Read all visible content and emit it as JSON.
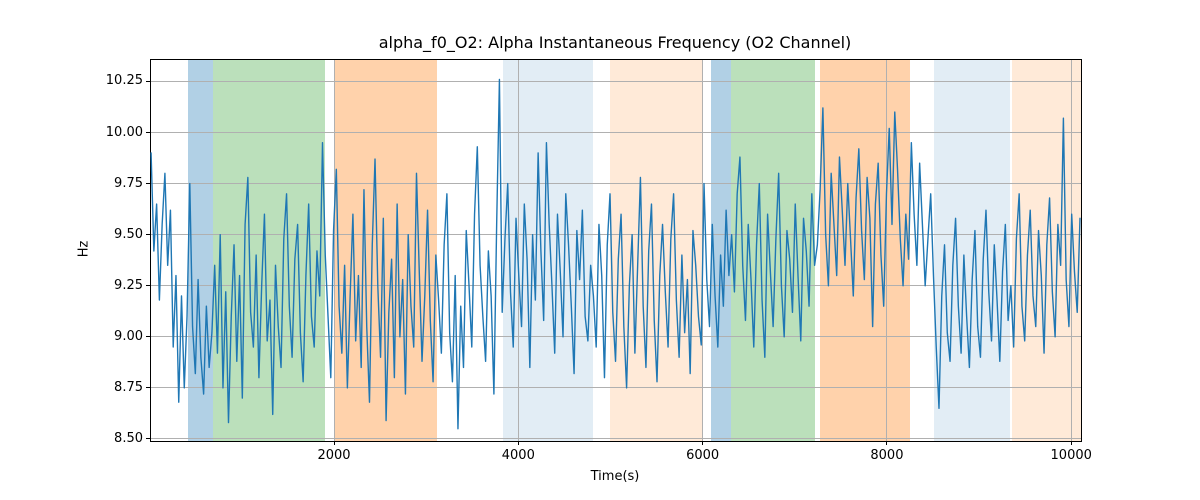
{
  "figure": {
    "title": "alpha_f0_O2: Alpha Instantaneous Frequency (O2 Channel)",
    "xlabel": "Time(s)",
    "ylabel": "Hz"
  },
  "chart_data": {
    "type": "line",
    "title": "alpha_f0_O2: Alpha Instantaneous Frequency (O2 Channel)",
    "xlabel": "Time(s)",
    "ylabel": "Hz",
    "xlim": [
      14,
      10106
    ],
    "ylim": [
      8.49,
      10.355
    ],
    "xticks": [
      2000,
      4000,
      6000,
      8000,
      10000
    ],
    "xtick_labels": [
      "2000",
      "4000",
      "6000",
      "8000",
      "10000"
    ],
    "yticks": [
      8.5,
      8.75,
      9.0,
      9.25,
      9.5,
      9.75,
      10.0,
      10.25
    ],
    "ytick_labels": [
      "8.50",
      "8.75",
      "9.00",
      "9.25",
      "9.50",
      "9.75",
      "10.00",
      "10.25"
    ],
    "grid": true,
    "legend": "none",
    "line_color": "#1f77b4",
    "line_width": 1.4,
    "band_colors": {
      "blue": "rgba(31,119,180,0.35)",
      "green": "rgba(44,160,44,0.32)",
      "orange": "rgba(255,127,14,0.35)",
      "light_blue": "rgba(31,119,180,0.13)",
      "light_orange": "rgba(255,127,14,0.16)"
    },
    "bands": [
      {
        "t_start": 415,
        "t_end": 684,
        "color": "blue"
      },
      {
        "t_start": 684,
        "t_end": 1902,
        "color": "green"
      },
      {
        "t_start": 2014,
        "t_end": 3118,
        "color": "orange"
      },
      {
        "t_start": 3830,
        "t_end": 4810,
        "color": "light_blue"
      },
      {
        "t_start": 4990,
        "t_end": 6008,
        "color": "light_orange"
      },
      {
        "t_start": 6094,
        "t_end": 6308,
        "color": "blue"
      },
      {
        "t_start": 6308,
        "t_end": 7222,
        "color": "green"
      },
      {
        "t_start": 7274,
        "t_end": 8254,
        "color": "orange"
      },
      {
        "t_start": 8514,
        "t_end": 9339,
        "color": "light_blue"
      },
      {
        "t_start": 9352,
        "t_end": 10106,
        "color": "light_orange"
      }
    ],
    "series": [
      {
        "name": "alpha_f0_O2",
        "t0": 15,
        "dt": 30,
        "values_segments": [
          [
            9.9,
            9.42,
            9.65,
            9.18,
            9.55,
            9.8,
            9.35,
            9.62,
            8.95,
            9.3,
            8.68,
            9.2,
            8.75,
            9.1
          ],
          [
            9.75,
            9.05,
            8.82,
            9.28,
            8.9,
            8.72,
            9.15,
            8.85,
            9.02
          ],
          [
            9.35,
            8.92,
            9.5,
            8.75,
            9.22,
            8.58,
            9.1,
            9.45,
            8.88,
            9.3,
            8.7,
            9.55,
            9.78,
            9.12,
            8.95,
            9.4,
            8.8,
            9.25,
            9.6,
            8.98,
            9.18,
            8.62,
            9.35,
            9.05,
            8.85,
            9.48,
            9.7,
            9.15,
            8.9,
            9.38,
            9.55,
            9.02,
            8.78,
            9.3,
            9.65,
            9.1,
            8.95,
            9.42,
            9.2,
            9.95
          ],
          [
            9.4,
            9.1,
            8.8,
            9.52,
            9.82,
            9.15,
            8.92,
            9.35,
            8.75,
            9.2,
            9.6,
            8.98,
            9.3,
            8.85,
            9.72,
            9.05,
            8.68,
            9.45,
            9.87,
            9.25,
            8.9,
            9.58,
            8.59,
            9.12,
            9.38,
            8.8,
            9.65,
            9.0,
            9.28,
            8.72,
            9.5,
            9.15,
            8.95,
            9.8,
            9.32,
            8.88,
            9.2,
            9.62,
            9.08,
            8.78,
            9.4
          ],
          [
            9.18,
            8.92,
            9.45,
            9.7,
            9.02,
            8.78,
            9.3,
            8.55,
            9.15,
            8.85,
            9.52,
            9.25,
            8.95,
            9.6,
            9.93,
            9.35,
            9.1,
            8.88,
            9.42,
            9.2,
            8.72,
            9.55,
            10.26
          ],
          [
            9.12,
            9.48,
            9.75,
            9.22,
            8.95,
            9.58,
            9.3,
            9.05,
            9.65,
            9.38,
            8.85,
            9.5,
            9.18,
            9.9,
            9.42,
            9.08,
            9.95,
            9.55,
            9.25,
            8.92,
            9.6,
            9.32,
            9.0,
            9.7,
            9.45,
            9.15,
            8.82,
            9.52,
            9.28,
            9.62,
            9.1,
            8.98,
            9.35
          ],
          [
            9.2,
            8.95,
            9.55,
            9.3,
            8.8,
            9.45,
            9.7,
            9.12,
            8.88,
            9.38,
            9.6,
            9.05,
            8.75,
            9.25,
            9.5,
            8.92,
            9.35,
            9.78,
            9.15,
            8.85,
            9.42,
            9.65,
            9.08,
            8.78,
            9.3,
            9.55,
            9.22,
            8.95,
            9.48,
            9.7,
            9.18,
            8.9,
            9.4,
            9.02,
            9.28,
            8.82,
            9.52,
            9.35,
            9.1,
            8.96
          ],
          [
            9.75,
            9.28,
            9.05,
            9.55,
            9.2,
            8.95,
            9.4,
            9.15,
            9.62,
            9.3
          ],
          [
            9.5,
            9.22,
            9.7,
            9.88,
            9.35,
            9.08,
            9.55,
            9.28,
            8.95,
            9.45,
            9.75,
            9.18,
            8.9,
            9.6,
            9.32,
            9.05,
            9.48,
            9.8,
            9.25,
            9.0,
            9.52,
            9.38,
            9.12,
            9.65,
            9.3,
            8.98,
            9.58,
            9.42,
            9.15,
            9.7,
            9.35
          ],
          [
            9.45,
            9.72,
            10.12,
            9.5,
            9.25,
            9.8,
            9.55,
            9.3,
            9.88,
            9.62,
            9.35,
            9.75,
            9.48,
            9.2,
            9.68,
            9.92,
            9.52,
            9.28,
            9.78,
            9.58,
            9.05,
            9.65,
            9.85,
            9.4,
            9.15,
            9.7,
            10.02,
            9.55,
            10.1,
            9.82,
            9.48,
            9.25,
            9.6,
            9.38
          ],
          [
            9.95,
            9.6,
            9.35,
            9.85,
            9.55,
            9.25,
            9.48,
            9.7
          ],
          [
            9.3,
            8.95,
            8.65,
            9.2,
            9.45,
            9.02,
            8.88,
            9.35,
            9.58,
            9.15,
            8.92,
            9.4,
            9.1,
            8.85,
            9.28,
            9.52,
            9.05,
            8.9,
            9.38,
            9.62,
            9.22,
            8.98,
            9.45,
            9.18,
            8.88,
            9.32,
            9.55,
            9.08
          ],
          [
            9.25,
            8.95,
            9.48,
            9.7,
            9.15,
            8.98,
            9.4,
            9.62,
            9.2,
            9.05,
            9.52,
            9.3,
            8.92,
            9.45,
            9.68,
            9.22,
            9.0,
            9.55,
            9.35,
            10.07,
            9.28,
            9.05,
            9.6,
            9.32,
            9.12,
            9.58
          ]
        ]
      }
    ]
  }
}
